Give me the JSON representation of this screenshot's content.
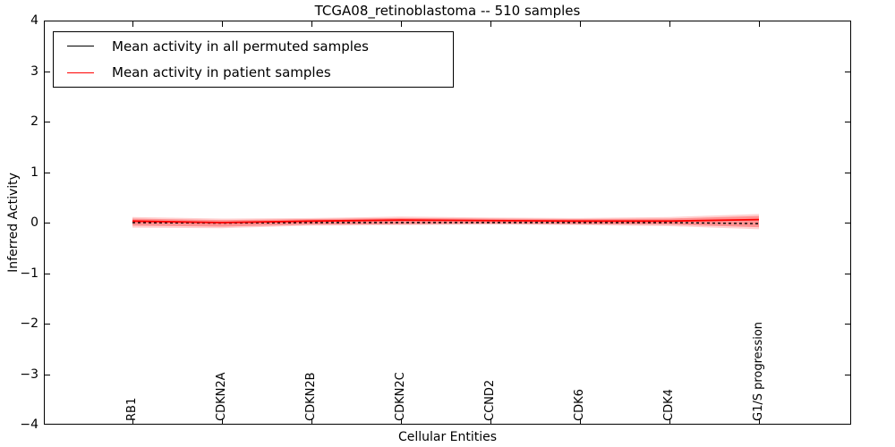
{
  "chart_data": {
    "type": "line",
    "title": "TCGA08_retinoblastoma -- 510 samples",
    "xlabel": "Cellular Entities",
    "ylabel": "Inferred Activity",
    "ylim": [
      -4,
      4
    ],
    "grid": false,
    "legend_position": "upper left",
    "yticks": [
      {
        "value": 4,
        "label": "4"
      },
      {
        "value": 3,
        "label": "3"
      },
      {
        "value": 2,
        "label": "2"
      },
      {
        "value": 1,
        "label": "1"
      },
      {
        "value": 0,
        "label": "0"
      },
      {
        "value": -1,
        "label": "−1"
      },
      {
        "value": -2,
        "label": "−2"
      },
      {
        "value": -3,
        "label": "−3"
      },
      {
        "value": -4,
        "label": "−4"
      }
    ],
    "categories": [
      "RB1",
      "CDKN2A",
      "CDKN2B",
      "CDKN2C",
      "CCND2",
      "CDK6",
      "CDK4",
      "G1/S progression"
    ],
    "series": [
      {
        "name": "Mean activity in all permuted samples",
        "color": "#000000",
        "style": "dashed",
        "values": [
          0.0,
          -0.01,
          0.0,
          0.0,
          0.0,
          0.0,
          0.0,
          -0.02
        ]
      },
      {
        "name": "Mean activity in patient samples",
        "color": "#ff0000",
        "style": "solid",
        "values": [
          0.03,
          0.0,
          0.03,
          0.05,
          0.04,
          0.03,
          0.03,
          0.06
        ]
      }
    ],
    "bands": [
      {
        "name": "patient-samples-spread-outer",
        "color": "#ff0000",
        "opacity": 0.18,
        "upper": [
          0.11,
          0.08,
          0.09,
          0.12,
          0.1,
          0.09,
          0.11,
          0.17
        ],
        "lower": [
          -0.1,
          -0.11,
          -0.06,
          -0.05,
          -0.04,
          -0.05,
          -0.07,
          -0.13
        ]
      },
      {
        "name": "patient-samples-spread-inner",
        "color": "#ff0000",
        "opacity": 0.3,
        "upper": [
          0.08,
          0.05,
          0.07,
          0.09,
          0.08,
          0.07,
          0.08,
          0.13
        ],
        "lower": [
          -0.06,
          -0.08,
          -0.04,
          -0.03,
          -0.02,
          -0.03,
          -0.04,
          -0.09
        ]
      }
    ]
  },
  "layout_colors": {
    "spine": "#000000",
    "background": "#ffffff"
  }
}
